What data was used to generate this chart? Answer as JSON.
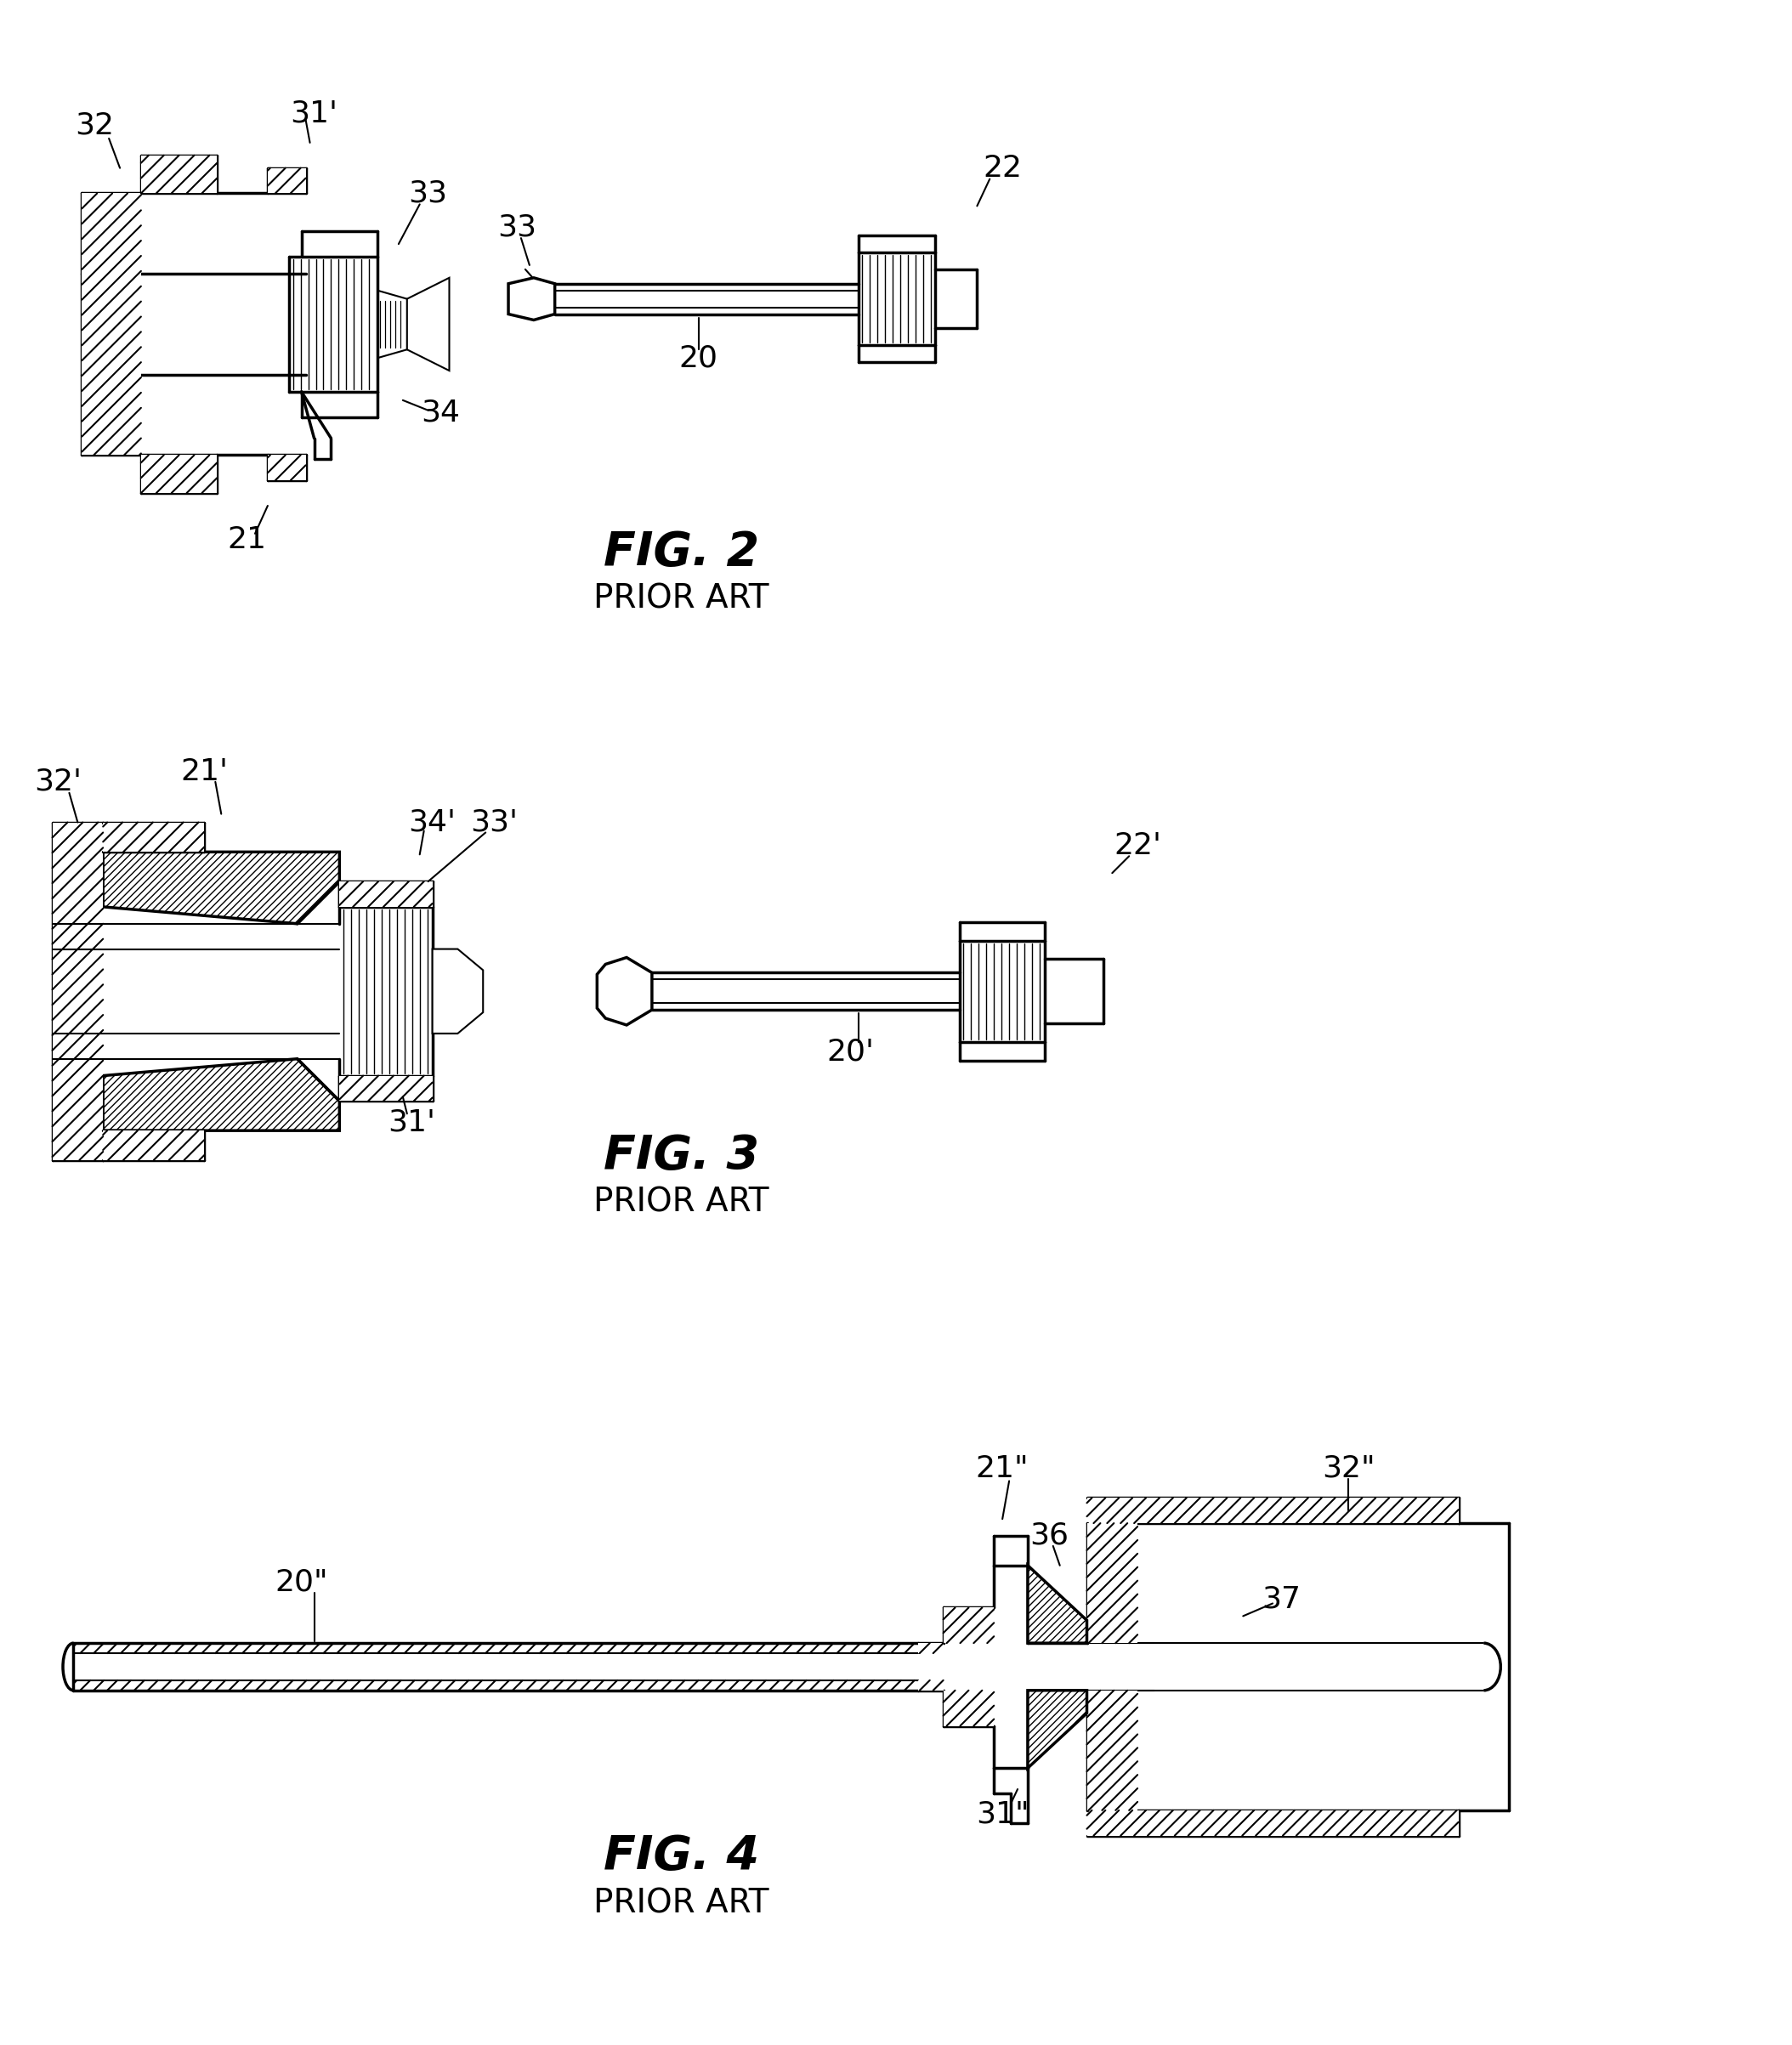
{
  "background_color": "#ffffff",
  "line_color": "#000000",
  "fig2_title": "FIG. 2",
  "fig3_title": "FIG. 3",
  "fig4_title": "FIG. 4",
  "prior_art": "PRIOR ART",
  "title_fontsize": 38,
  "label_fontsize": 26,
  "subtitle_fontsize": 24
}
